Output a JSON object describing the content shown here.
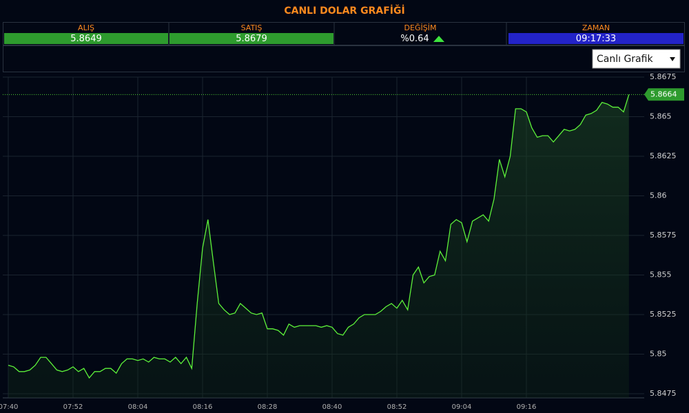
{
  "header": {
    "title": "CANLI DOLAR GRAFİĞİ",
    "stats": [
      {
        "label": "ALIŞ",
        "value": "5.8649"
      },
      {
        "label": "SATIŞ",
        "value": "5.8679"
      },
      {
        "label": "DEĞİŞİM",
        "value": "%0.64"
      },
      {
        "label": "ZAMAN",
        "value": "09:17:33"
      }
    ],
    "dropdown": "Canlı Grafik"
  },
  "chart_data": {
    "type": "line",
    "categories": [
      "07:40",
      null,
      null,
      null,
      null,
      null,
      null,
      null,
      null,
      null,
      null,
      null,
      "07:52",
      null,
      null,
      null,
      null,
      null,
      null,
      null,
      null,
      null,
      null,
      null,
      "08:04",
      null,
      null,
      null,
      null,
      null,
      null,
      null,
      null,
      null,
      null,
      null,
      "08:16",
      null,
      null,
      null,
      null,
      null,
      null,
      null,
      null,
      null,
      null,
      null,
      "08:28",
      null,
      null,
      null,
      null,
      null,
      null,
      null,
      null,
      null,
      null,
      null,
      "08:40",
      null,
      null,
      null,
      null,
      null,
      null,
      null,
      null,
      null,
      null,
      null,
      "08:52",
      null,
      null,
      null,
      null,
      null,
      null,
      null,
      null,
      null,
      null,
      null,
      "09:04",
      null,
      null,
      null,
      null,
      null,
      null,
      null,
      null,
      null,
      null,
      null,
      "09:16",
      null,
      null,
      null,
      null,
      null,
      null,
      null,
      null,
      null,
      null,
      null,
      null,
      null,
      null,
      null,
      null,
      null,
      null,
      null
    ],
    "series": [
      {
        "color": "#5df23a",
        "values": [
          5.8493,
          5.8492,
          5.8489,
          5.8489,
          5.849,
          5.8493,
          5.8498,
          5.8498,
          5.8494,
          5.849,
          5.8489,
          5.849,
          5.8492,
          5.8489,
          5.8491,
          5.8485,
          5.8489,
          5.8489,
          5.8491,
          5.8491,
          5.8488,
          5.8494,
          5.8497,
          5.8497,
          5.8496,
          5.8497,
          5.8495,
          5.8498,
          5.8497,
          5.8497,
          5.8495,
          5.8498,
          5.8494,
          5.8498,
          5.8491,
          5.8532,
          5.8567,
          5.8585,
          5.8558,
          5.8532,
          5.8528,
          5.8525,
          5.8526,
          5.8532,
          5.8529,
          5.8526,
          5.8525,
          5.8526,
          5.8516,
          5.8516,
          5.8515,
          5.8512,
          5.8519,
          5.8517,
          5.8518,
          5.8518,
          5.8518,
          5.8518,
          5.8517,
          5.8518,
          5.8517,
          5.8513,
          5.8512,
          5.8517,
          5.8519,
          5.8523,
          5.8525,
          5.8525,
          5.8525,
          5.8527,
          5.853,
          5.8532,
          5.8529,
          5.8534,
          5.8528,
          5.855,
          5.8555,
          5.8545,
          5.8549,
          5.855,
          5.8565,
          5.8559,
          5.8582,
          5.8585,
          5.8583,
          5.8571,
          5.8584,
          5.8586,
          5.8588,
          5.8584,
          5.8598,
          5.8623,
          5.8612,
          5.8625,
          5.8655,
          5.8655,
          5.8653,
          5.8643,
          5.8637,
          5.8638,
          5.8638,
          5.8634,
          5.8638,
          5.8642,
          5.8641,
          5.8642,
          5.8645,
          5.8651,
          5.8652,
          5.8654,
          5.8659,
          5.8658,
          5.8656,
          5.8656,
          5.8653,
          5.8664
        ]
      }
    ],
    "ylim": [
      5.8475,
      5.8675
    ],
    "yticks": [
      5.8675,
      5.865,
      5.8625,
      5.86,
      5.8575,
      5.855,
      5.8525,
      5.85,
      5.8475
    ],
    "grid": true
  }
}
